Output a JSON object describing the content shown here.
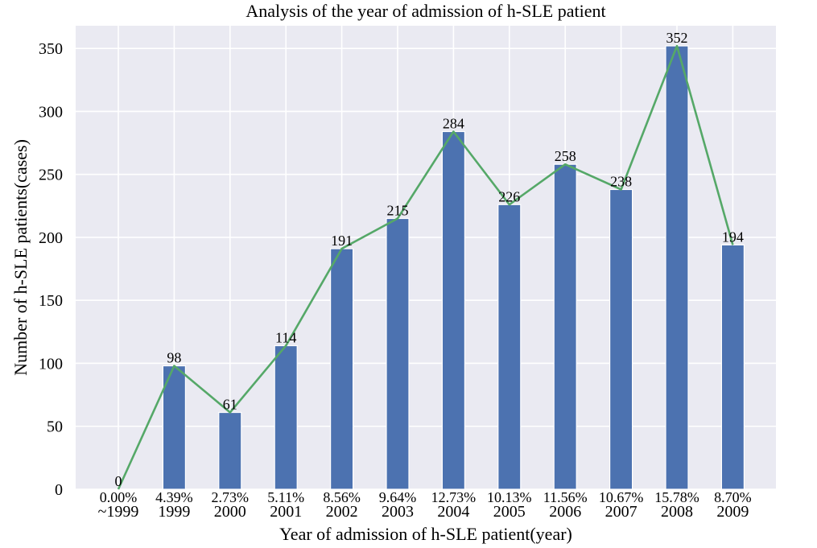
{
  "chart_data": {
    "type": "bar",
    "title": "Analysis of the year of admission of h-SLE patient",
    "xlabel": "Year of admission of h-SLE patient(year)",
    "ylabel": "Number of h-SLE patients(cases)",
    "categories": [
      "~1999",
      "1999",
      "2000",
      "2001",
      "2002",
      "2003",
      "2004",
      "2005",
      "2006",
      "2007",
      "2008",
      "2009"
    ],
    "percentages": [
      "0.00%",
      "4.39%",
      "2.73%",
      "5.11%",
      "8.56%",
      "9.64%",
      "12.73%",
      "10.13%",
      "11.56%",
      "10.67%",
      "15.78%",
      "8.70%"
    ],
    "series": [
      {
        "name": "cases (bar)",
        "kind": "bar",
        "values": [
          0,
          98,
          61,
          114,
          191,
          215,
          284,
          226,
          258,
          238,
          352,
          194
        ]
      },
      {
        "name": "cases (line)",
        "kind": "line",
        "values": [
          0,
          98,
          61,
          114,
          191,
          215,
          284,
          226,
          258,
          238,
          352,
          194
        ]
      }
    ],
    "ylim": [
      0,
      368
    ],
    "yticks": [
      0,
      50,
      100,
      150,
      200,
      250,
      300,
      350
    ],
    "grid": true,
    "legend": "none",
    "colors": {
      "bar": "#4c72b0",
      "line": "#55a868",
      "background": "#eaeaf2",
      "grid": "#ffffff"
    }
  }
}
